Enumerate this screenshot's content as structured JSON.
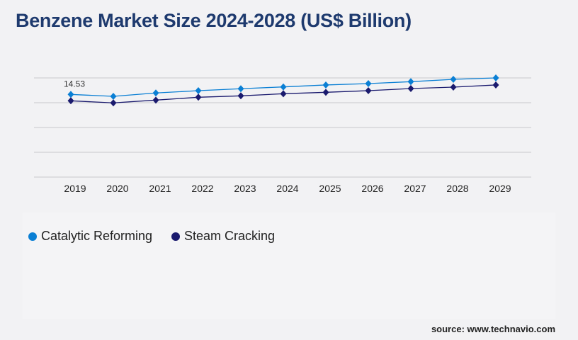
{
  "chart_data": {
    "type": "line",
    "title": "Benzene Market Size 2024-2028 (US$ Billion)",
    "categories": [
      "2019",
      "2020",
      "2021",
      "2022",
      "2023",
      "2024",
      "2025",
      "2026",
      "2027",
      "2028",
      "2029"
    ],
    "series": [
      {
        "name": "Catalytic Reforming",
        "color": "#0a7fd4",
        "values": [
          14.53,
          14.19,
          14.78,
          15.19,
          15.53,
          15.85,
          16.19,
          16.43,
          16.77,
          17.18,
          17.43
        ]
      },
      {
        "name": "Steam Cracking",
        "color": "#1a1a6e",
        "values": [
          13.41,
          13.04,
          13.53,
          14.03,
          14.28,
          14.65,
          14.9,
          15.19,
          15.56,
          15.81,
          16.19
        ]
      }
    ],
    "data_labels": [
      {
        "series": 0,
        "index": 0,
        "text": "14.53"
      }
    ],
    "ylim": [
      0,
      17.43
    ],
    "y_ticks_shown": false,
    "grid": true,
    "legend": "bottom-left",
    "source": "source: www.technavio.com"
  }
}
